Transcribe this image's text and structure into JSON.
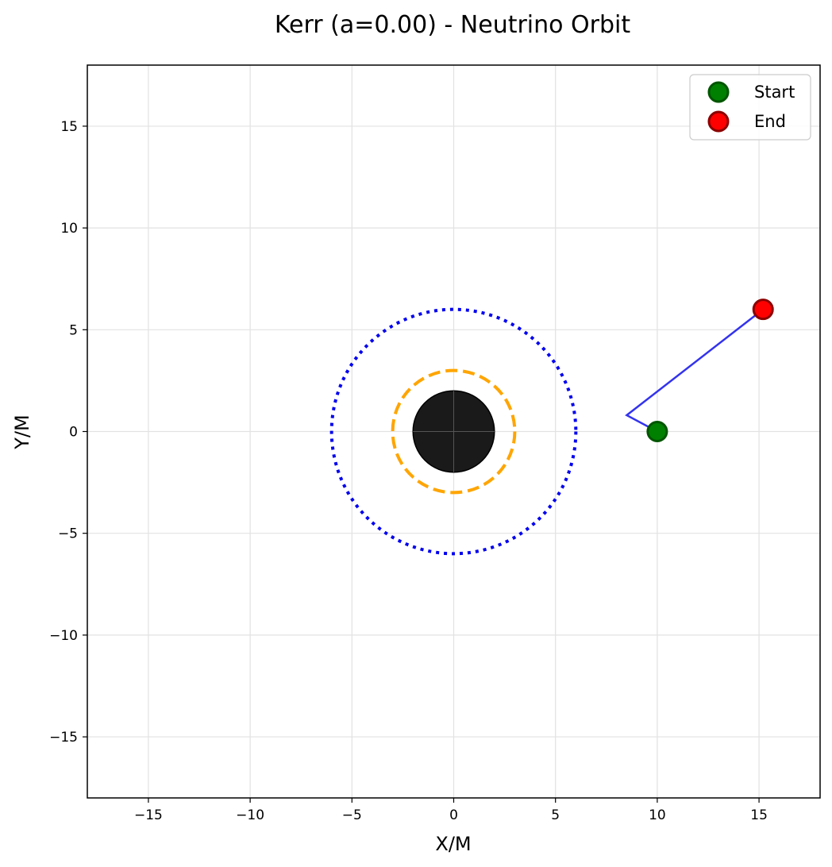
{
  "chart_data": {
    "type": "line",
    "title": "Kerr (a=0.00) - Neutrino Orbit",
    "xlabel": "X/M",
    "ylabel": "Y/M",
    "xlim": [
      -18,
      18
    ],
    "ylim": [
      -18,
      18
    ],
    "xticks": [
      -15,
      -10,
      -5,
      0,
      5,
      10,
      15
    ],
    "yticks": [
      -15,
      -10,
      -5,
      0,
      5,
      10,
      15
    ],
    "xtick_labels": [
      "−15",
      "−10",
      "−5",
      "0",
      "5",
      "10",
      "15"
    ],
    "ytick_labels": [
      "−15",
      "−10",
      "−5",
      "0",
      "5",
      "10",
      "15"
    ],
    "grid": true,
    "legend_position": "top-right",
    "horizon": {
      "radius": 2,
      "color": "#1a1a1a"
    },
    "circles": [
      {
        "radius": 3,
        "color": "#ffa500",
        "style": "dashed"
      },
      {
        "radius": 6,
        "color": "#0000ee",
        "style": "dotted"
      }
    ],
    "trajectory": {
      "color": "#3333ee",
      "x": [
        10,
        8.5,
        15.2
      ],
      "y": [
        0,
        0.8,
        6.0
      ]
    },
    "markers": [
      {
        "label": "Start",
        "x": 10,
        "y": 0,
        "fill": "#008000",
        "edge": "#005500"
      },
      {
        "label": "End",
        "x": 15.2,
        "y": 6.0,
        "fill": "#ff0000",
        "edge": "#8b0000"
      }
    ]
  }
}
